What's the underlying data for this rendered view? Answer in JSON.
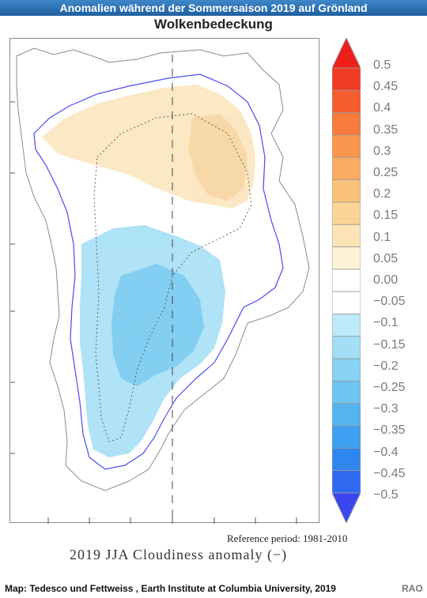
{
  "header": {
    "banner": "Anomalien während der Sommersaison 2019 auf Grönland",
    "subtitle": "Wolkenbedeckung"
  },
  "map": {
    "region": "Greenland",
    "variable": "2019 JJA Cloudiness anomaly (−)",
    "reference_period_text": "Reference period: 1981-2010",
    "axis_title": "2019 JJA Cloudiness anomaly (−)",
    "coastline_color": "#4a4af0",
    "ice_margin_color": "#888888",
    "anomaly_regions": [
      {
        "name": "north",
        "anomaly": 0.2,
        "color": "#fbe8c4"
      },
      {
        "name": "north-core",
        "anomaly": 0.25,
        "color": "#f8d9a8"
      },
      {
        "name": "central-south",
        "anomaly": -0.15,
        "color": "#aee2f6"
      },
      {
        "name": "central-core",
        "anomaly": -0.25,
        "color": "#7fcdf1"
      }
    ]
  },
  "colorbar": {
    "labels": [
      "0.5",
      "0.45",
      "0.4",
      "0.35",
      "0.3",
      "0.25",
      "0.2",
      "0.15",
      "0.1",
      "0.05",
      "0.00",
      "−0.05",
      "−0.1",
      "−0.15",
      "−0.2",
      "−0.25",
      "−0.3",
      "−0.35",
      "−0.4",
      "−0.45",
      "−0.5"
    ],
    "colors": [
      "#ee1f1a",
      "#f23b25",
      "#f55d2f",
      "#f67b3c",
      "#f7964d",
      "#f9ad62",
      "#f9c27c",
      "#fad497",
      "#fbe3b5",
      "#fdf2d6",
      "#ffffff",
      "#ffffff",
      "#bde9f8",
      "#a3def6",
      "#88d2f3",
      "#6ec4f1",
      "#54b4ee",
      "#3f9ff0",
      "#2f86f0",
      "#2f6af0",
      "#3a47f0"
    ]
  },
  "footer": {
    "credit": "Map: Tedesco und Fettweiss , Earth Institute at Columbia University, 2019",
    "rao": "RAO"
  }
}
